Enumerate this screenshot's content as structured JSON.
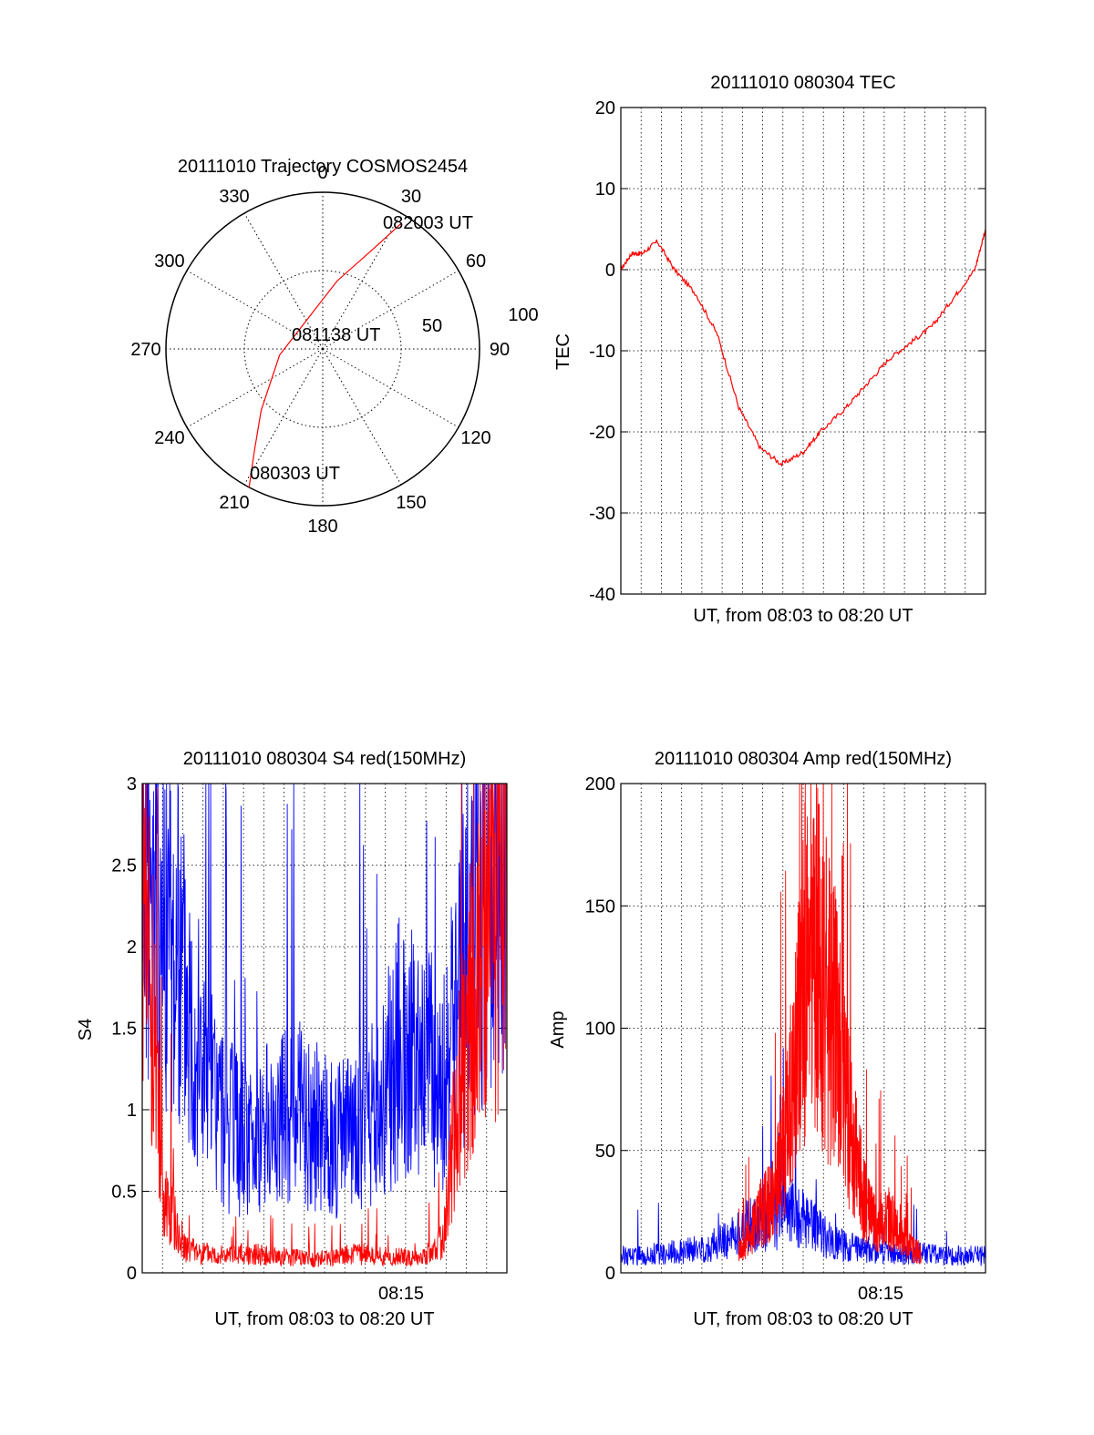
{
  "chart_data": [
    {
      "type": "polar",
      "title": "20111010 Trajectory COSMOS2454",
      "angle_labels": [
        "0",
        "30",
        "60",
        "90",
        "120",
        "150",
        "180",
        "210",
        "240",
        "270",
        "300",
        "330"
      ],
      "radial_labels": [
        "50",
        "100"
      ],
      "annotations": [
        "082003 UT",
        "081138 UT",
        "080303 UT"
      ],
      "series": [
        {
          "color": "#ff0000",
          "points": [
            [
              208,
              0
            ],
            [
              214,
              20
            ],
            [
              225,
              40
            ],
            [
              262,
              65
            ],
            [
              12,
              50
            ],
            [
              27,
              25
            ],
            [
              32,
              5
            ]
          ]
        }
      ]
    },
    {
      "type": "line",
      "title": "20111010 080304 TEC",
      "xlabel": "UT, from 08:03 to 08:20 UT",
      "ylabel": "TEC",
      "xlim": [
        0,
        17
      ],
      "ylim": [
        -40,
        20
      ],
      "yticks": [
        "20",
        "10",
        "0",
        "-10",
        "-20",
        "-30",
        "-40"
      ],
      "grid": true,
      "series": [
        {
          "color": "#ff0000",
          "x": [
            0,
            0.5,
            1,
            1.7,
            2.5,
            3.5,
            4.5,
            5.5,
            6.5,
            7.5,
            8.5,
            9.3,
            10.5,
            11.5,
            12.5,
            13.5,
            14.5,
            15.5,
            16.5,
            17
          ],
          "values": [
            0,
            2,
            2,
            3.5,
            0,
            -3,
            -8,
            -17,
            -22,
            -24,
            -22.5,
            -20,
            -17,
            -14,
            -11,
            -9,
            -7,
            -3.5,
            0,
            5
          ]
        }
      ]
    },
    {
      "type": "line",
      "title": "20111010 080304 S4 red(150MHz)",
      "xlabel": "UT, from 08:03 to 08:20 UT",
      "ylabel": "S4",
      "xlim": [
        0,
        17
      ],
      "ylim": [
        0,
        3
      ],
      "yticks": [
        "3",
        "2.5",
        "2",
        "1.5",
        "1",
        "0.5",
        "0"
      ],
      "xtick_labels": [
        "08:15"
      ],
      "grid": true,
      "series": [
        {
          "color": "#0000ff",
          "x": [
            0,
            1,
            2,
            3,
            4,
            5,
            6,
            7,
            8,
            9,
            10,
            11,
            12,
            13,
            14,
            15,
            16,
            17
          ],
          "values": [
            2.8,
            2.2,
            1.8,
            1.2,
            0.9,
            0.8,
            0.9,
            1.0,
            0.9,
            0.8,
            0.9,
            1.0,
            1.4,
            1.3,
            1.2,
            1.8,
            2.6,
            3.0
          ]
        },
        {
          "color": "#ff0000",
          "x": [
            0,
            1,
            2,
            3,
            4,
            5,
            6,
            7,
            8,
            9,
            10,
            11,
            12,
            13,
            14,
            15,
            16,
            17
          ],
          "values": [
            2.5,
            0.5,
            0.15,
            0.12,
            0.1,
            0.12,
            0.1,
            0.1,
            0.08,
            0.1,
            0.12,
            0.1,
            0.1,
            0.08,
            0.2,
            1.4,
            2.1,
            2.2
          ]
        }
      ]
    },
    {
      "type": "line",
      "title": "20111010 080304 Amp red(150MHz)",
      "xlabel": "UT, from 08:03 to 08:20 UT",
      "ylabel": "Amp",
      "xlim": [
        0,
        17
      ],
      "ylim": [
        0,
        200
      ],
      "yticks": [
        "200",
        "150",
        "100",
        "50",
        "0"
      ],
      "xtick_labels": [
        "08:15"
      ],
      "grid": true,
      "series": [
        {
          "color": "#0000ff",
          "x": [
            0,
            2,
            4,
            5,
            6,
            7,
            8,
            9,
            10,
            11,
            12,
            13,
            14,
            15,
            16,
            17
          ],
          "values": [
            7,
            8,
            10,
            14,
            20,
            22,
            25,
            18,
            12,
            10,
            9,
            8,
            8,
            7,
            7,
            7
          ]
        },
        {
          "color": "#ff0000",
          "x": [
            5.5,
            6,
            6.5,
            7,
            7.5,
            8,
            8.5,
            9,
            9.5,
            10,
            10.5,
            11,
            11.5,
            12,
            12.5,
            13,
            13.5,
            14
          ],
          "values": [
            8,
            15,
            25,
            28,
            45,
            75,
            120,
            130,
            115,
            100,
            70,
            45,
            25,
            20,
            22,
            18,
            10,
            8
          ]
        }
      ]
    }
  ]
}
